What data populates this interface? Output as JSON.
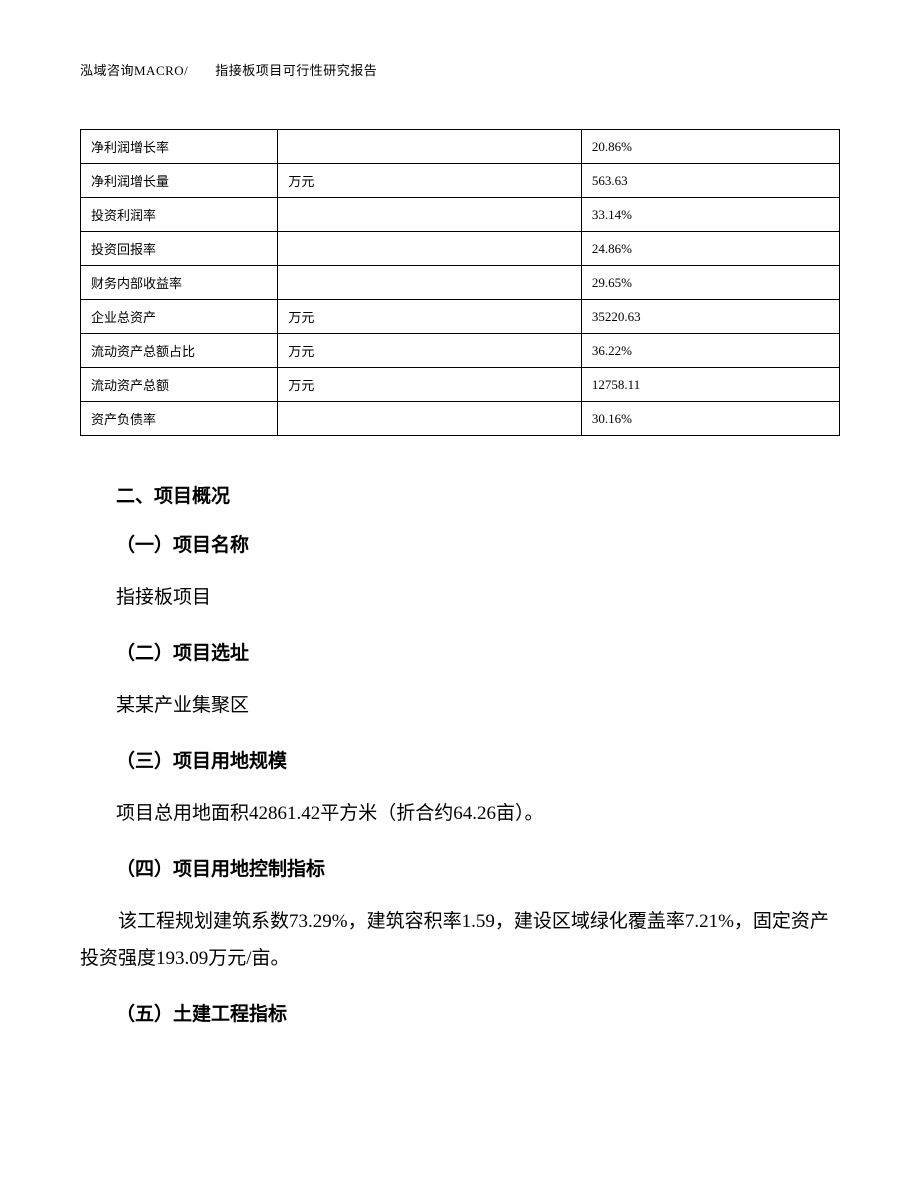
{
  "header": {
    "text": "泓域咨询MACRO/　　指接板项目可行性研究报告"
  },
  "table": {
    "rows": [
      {
        "label": "净利润增长率",
        "unit": "",
        "value": "20.86%"
      },
      {
        "label": "净利润增长量",
        "unit": "万元",
        "value": "563.63"
      },
      {
        "label": "投资利润率",
        "unit": "",
        "value": "33.14%"
      },
      {
        "label": "投资回报率",
        "unit": "",
        "value": "24.86%"
      },
      {
        "label": "财务内部收益率",
        "unit": "",
        "value": "29.65%"
      },
      {
        "label": "企业总资产",
        "unit": "万元",
        "value": "35220.63"
      },
      {
        "label": "流动资产总额占比",
        "unit": "万元",
        "value": "36.22%"
      },
      {
        "label": "流动资产总额",
        "unit": "万元",
        "value": "12758.11"
      },
      {
        "label": "资产负债率",
        "unit": "",
        "value": "30.16%"
      }
    ]
  },
  "sections": {
    "main_heading": "二、项目概况",
    "sub1": {
      "heading": "（一）项目名称",
      "text": "指接板项目"
    },
    "sub2": {
      "heading": "（二）项目选址",
      "text": "某某产业集聚区"
    },
    "sub3": {
      "heading": "（三）项目用地规模",
      "text": "项目总用地面积42861.42平方米（折合约64.26亩）。"
    },
    "sub4": {
      "heading": "（四）项目用地控制指标",
      "text": "该工程规划建筑系数73.29%，建筑容积率1.59，建设区域绿化覆盖率7.21%，固定资产投资强度193.09万元/亩。"
    },
    "sub5": {
      "heading": "（五）土建工程指标"
    }
  }
}
